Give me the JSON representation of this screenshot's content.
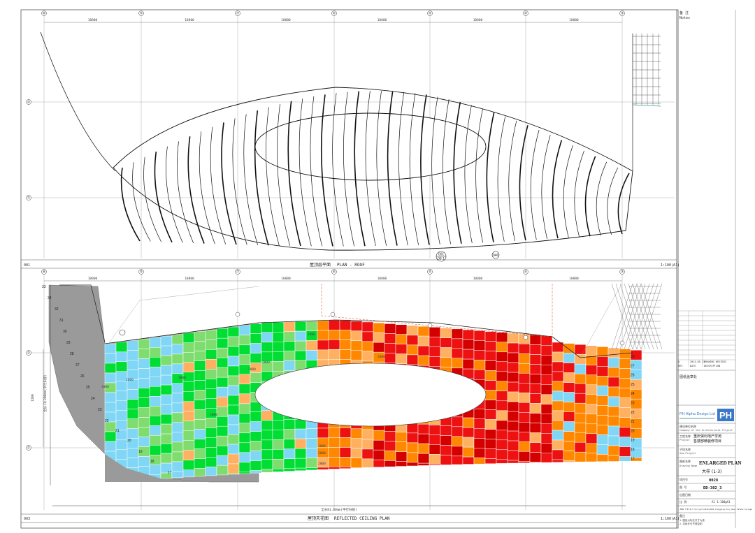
{
  "drawing": {
    "grid_axes": [
      "⑧",
      "⑤",
      "⑦",
      "⑥",
      "⑤",
      "④",
      "③"
    ],
    "grid_rows": [
      "②",
      "①"
    ],
    "bay_dims": [
      "10800",
      "10800",
      "10800",
      "10800",
      "10800",
      "10800"
    ],
    "top_panel": {
      "id": "001",
      "title_cn": "屋顶层平面",
      "title_en": "PLAN - ROOF",
      "scale": "1:100(A1)",
      "section_tag_top": "001",
      "section_tag_bottom": "08.1",
      "marker_tag": "046"
    },
    "bottom_panel": {
      "id": "003",
      "title_cn": "屋顶天花图",
      "title_en": "REFLECTED CEILING PLAN",
      "scale": "1:100(A1)",
      "overall_dim": "全长81.00mm(平行扫掠)",
      "left_dim": "1200",
      "left_dim_vertical": "全长(1)200mm(平行扫掠)",
      "small_dims": [
        "2000",
        "3000",
        "2000",
        "1000",
        "2000",
        "1000",
        "1000",
        "2000",
        "2000",
        "2000",
        "1000"
      ],
      "left_row_numbers": [
        "33",
        "34",
        "32",
        "31",
        "30",
        "29",
        "28",
        "27",
        "26",
        "25",
        "24",
        "23",
        "22",
        "21",
        "20",
        "19",
        "18",
        "17"
      ],
      "right_row_numbers": [
        "28",
        "27",
        "26",
        "25",
        "24",
        "23",
        "22",
        "21",
        "20",
        "19",
        "18",
        "17"
      ]
    }
  },
  "title_block": {
    "notes_label_cn": "备 注",
    "notes_label_en": "Notes",
    "revision_rows": [
      {
        "no": "A",
        "date": "2014.05.13",
        "desc": "DRAWING REVISED"
      },
      {
        "no": "REV",
        "date": "DATE",
        "desc": "DESCRIPTION"
      }
    ],
    "stamp_label": "图纸盖章处",
    "company_name": "PH Alpha Design Ltd",
    "company_logo": "PH",
    "client_label_cn": "建设单位名称",
    "client_label_en": "Company of the Architectural Project",
    "project_label_cn": "工程名称",
    "project_label_en": "Project",
    "project_name_1": "重庆保利地产学苑",
    "project_name_2": "售楼部精装修项目",
    "sub_project_label_cn": "子项名称",
    "sub_project_label_en": "Sub-Project",
    "drawing_name_label_cn": "图纸名称",
    "drawing_name_label_en": "Drawing Name",
    "drawing_name_en": "ENLARGED PLAN",
    "drawing_name_cn": "大样 (1-3)",
    "project_no_label": "项目号",
    "project_no": "0028",
    "drawing_no_label": "图 号",
    "drawing_no": "DD-302_3",
    "date_label": "出图日期",
    "scale_label": "比 例",
    "scale_value": "A1 1:100@A1",
    "file_label": "Job File",
    "file_path": "Y:\\Project\\2014\\0028_Chongqing Poly Real Estate College",
    "remark_label": "备注",
    "remark_lines": [
      "1. 图纸以标注尺寸为准",
      "2. 未经许可不得复制"
    ]
  },
  "colors": {
    "grey": "#9a9a9a",
    "green": "#00dd33",
    "light_green": "#7fdd70",
    "cyan": "#7fd6f5",
    "orange": "#ff8800",
    "light_orange": "#ffb060",
    "red": "#ee1111",
    "dark_red": "#d40000"
  },
  "icons": [
    "grid-bubble-icon",
    "section-marker-icon",
    "company-logo-icon"
  ]
}
